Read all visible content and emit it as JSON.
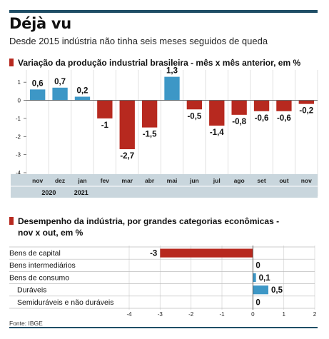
{
  "header": {
    "title": "Déjà vu",
    "subtitle": "Desde 2015 indústria não tinha seis meses seguidos de queda"
  },
  "source": "Fonte: IBGE",
  "colors": {
    "positive": "#3d97c6",
    "negative": "#b7291f",
    "accent_bar": "#1f4e66",
    "axis_band": "#c9d6dd"
  },
  "chart_data": [
    {
      "type": "bar",
      "title": "Variação da produção industrial brasileira - mês x mês anterior, em %",
      "categories": [
        "nov",
        "dez",
        "jan",
        "fev",
        "mar",
        "abr",
        "mai",
        "jun",
        "jul",
        "ago",
        "set",
        "out",
        "nov"
      ],
      "values": [
        0.6,
        0.7,
        0.2,
        -1,
        -2.7,
        -1.5,
        1.3,
        -0.5,
        -1.4,
        -0.8,
        -0.6,
        -0.6,
        -0.2
      ],
      "value_labels": [
        "0,6",
        "0,7",
        "0,2",
        "-1",
        "-2,7",
        "-1,5",
        "1,3",
        "-0,5",
        "-1,4",
        "-0,8",
        "-0,6",
        "-0,6",
        "-0,2"
      ],
      "year_labels": [
        {
          "label": "2020",
          "from": 0,
          "to": 1
        },
        {
          "label": "2021",
          "from": 2,
          "to": 12
        }
      ],
      "yticks": [
        1,
        0,
        -1,
        -2,
        -3,
        -4
      ],
      "ytick_labels": [
        "1",
        "0",
        "-1",
        "-2",
        "-3",
        "-4"
      ],
      "ylim": [
        -4,
        1.6
      ],
      "grid": true
    },
    {
      "type": "bar",
      "orientation": "horizontal",
      "title": "Desempenho da indústria, por grandes categorias econômicas -",
      "title_cont": "nov x out, em %",
      "categories": [
        "Bens de capital",
        "Bens intermediários",
        "Bens de consumo",
        "Duráveis",
        "Semiduráveis e não duráveis"
      ],
      "indented": [
        false,
        false,
        false,
        true,
        true
      ],
      "values": [
        -3,
        0,
        0.1,
        0.5,
        0
      ],
      "value_labels": [
        "-3",
        "0",
        "0,1",
        "0,5",
        "0"
      ],
      "xticks": [
        -4,
        -3,
        -2,
        -1,
        0,
        1,
        2
      ],
      "xtick_labels": [
        "-4",
        "-3",
        "-2",
        "-1",
        "0",
        "1",
        "2"
      ],
      "xlim": [
        -4,
        2
      ],
      "grid": true
    }
  ]
}
